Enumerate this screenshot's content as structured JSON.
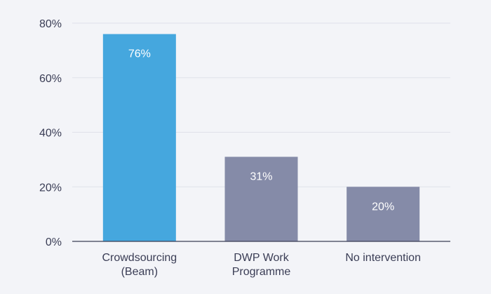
{
  "chart_data": {
    "type": "bar",
    "title": "",
    "xlabel": "",
    "ylabel": "",
    "categories": [
      [
        "Crowdsourcing",
        "(Beam)"
      ],
      [
        "DWP Work",
        "Programme"
      ],
      [
        "No intervention"
      ]
    ],
    "values": [
      76,
      31,
      20
    ],
    "data_labels": [
      "76%",
      "31%",
      "20%"
    ],
    "colors": [
      "#45a7de",
      "#858ba8",
      "#858ba8"
    ],
    "ylim": [
      0,
      80
    ],
    "yticks": [
      0,
      20,
      40,
      60,
      80
    ],
    "ytick_labels": [
      "0%",
      "20%",
      "40%",
      "60%",
      "80%"
    ],
    "grid": true,
    "legend": "none"
  }
}
